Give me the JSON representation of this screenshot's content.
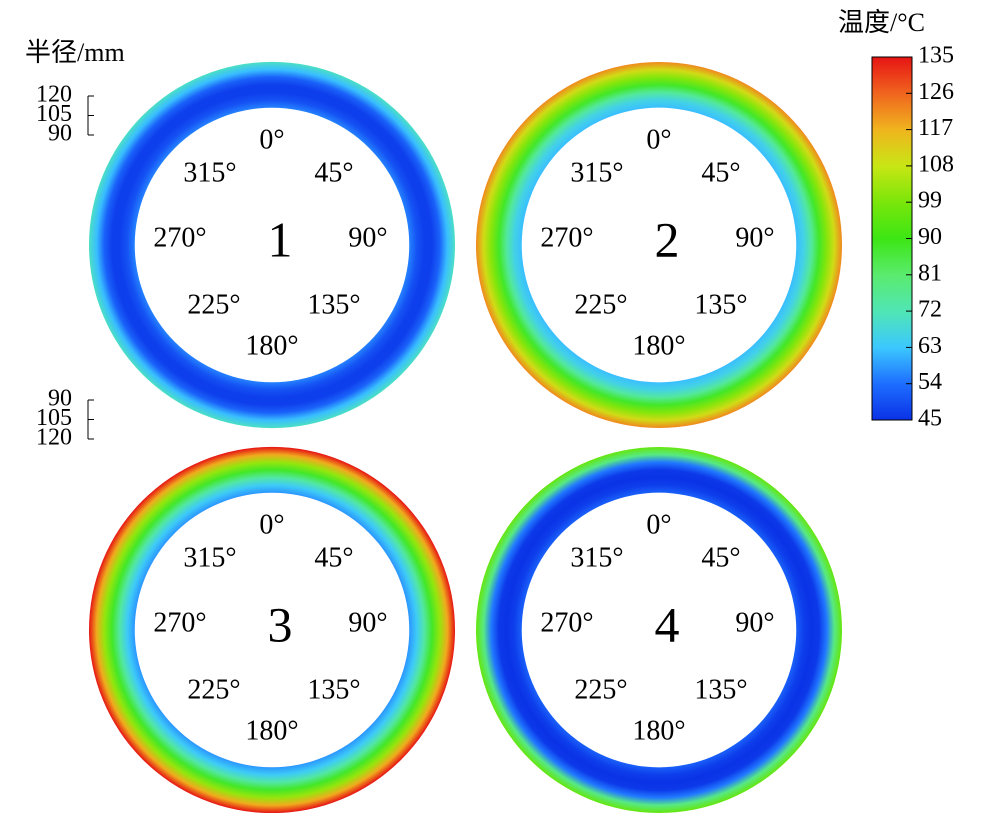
{
  "chart_data": {
    "type": "annulus-contour",
    "radius_label": "半径/mm",
    "radius_ticks_top": [
      120,
      105,
      90
    ],
    "radius_ticks_bottom": [
      90,
      105,
      120
    ],
    "radii": [
      90,
      95,
      100,
      105,
      110,
      115,
      120
    ],
    "colorbar": {
      "title": "温度/°C",
      "lim": [
        45,
        135
      ],
      "ticks": [
        135,
        126,
        117,
        108,
        99,
        90,
        81,
        72,
        63,
        54,
        45
      ],
      "colormap": [
        "#0a32e6",
        "#1e6eff",
        "#3cc8ff",
        "#50e6b4",
        "#5aeb6e",
        "#3ce614",
        "#7ae60a",
        "#c8e614",
        "#f0b41e",
        "#f0641e",
        "#e61414"
      ]
    },
    "angle_labels": [
      "0°",
      "45°",
      "90°",
      "135°",
      "180°",
      "225°",
      "270°",
      "315°"
    ],
    "panels": [
      {
        "label": "1",
        "temperatures": [
          56,
          50,
          47,
          47,
          52,
          62,
          70
        ]
      },
      {
        "label": "2",
        "temperatures": [
          62,
          66,
          75,
          88,
          100,
          110,
          122
        ]
      },
      {
        "label": "3",
        "temperatures": [
          58,
          64,
          74,
          88,
          102,
          118,
          135
        ]
      },
      {
        "label": "4",
        "temperatures": [
          52,
          47,
          45,
          46,
          55,
          78,
          96
        ]
      }
    ]
  }
}
